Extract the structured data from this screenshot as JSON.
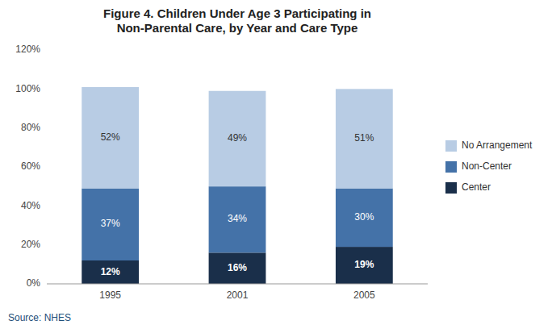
{
  "chart_data": {
    "type": "bar",
    "stacked": true,
    "title": "Figure 4. Children Under Age 3 Participating in\nNon-Parental Care, by Year and Care Type",
    "categories": [
      "1995",
      "2001",
      "2005"
    ],
    "series": [
      {
        "name": "Center",
        "color": "#1a2f4a",
        "values": [
          12,
          16,
          19
        ],
        "value_labels": [
          "12%",
          "16%",
          "19%"
        ]
      },
      {
        "name": "Non-Center",
        "color": "#4472a8",
        "values": [
          37,
          34,
          30
        ],
        "value_labels": [
          "37%",
          "34%",
          "30%"
        ]
      },
      {
        "name": "No Arrangement",
        "color": "#b8cce4",
        "values": [
          52,
          49,
          51
        ],
        "value_labels": [
          "52%",
          "49%",
          "51%"
        ]
      }
    ],
    "ylim": [
      0,
      120
    ],
    "yticks": [
      {
        "value": 0,
        "label": "0%"
      },
      {
        "value": 20,
        "label": "20%"
      },
      {
        "value": 40,
        "label": "40%"
      },
      {
        "value": 60,
        "label": "60%"
      },
      {
        "value": 80,
        "label": "80%"
      },
      {
        "value": 100,
        "label": "100%"
      },
      {
        "value": 120,
        "label": "120%"
      }
    ],
    "grid": false,
    "legend": "right",
    "data_labels": true,
    "annotations": [
      "Source: NHES"
    ]
  }
}
